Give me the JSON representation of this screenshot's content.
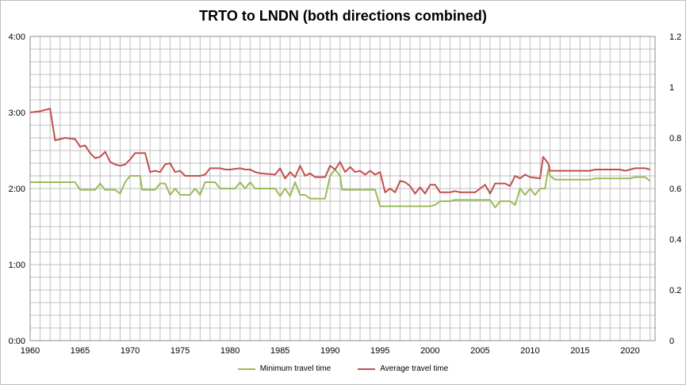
{
  "colors": {
    "min": "#9BBB59",
    "avg": "#C0504D",
    "grid": "#bfbfbf"
  },
  "chart_data": {
    "type": "line",
    "title": "TRTO to LNDN (both directions combined)",
    "xlim": [
      1960,
      2022.5
    ],
    "ylim_left": [
      0,
      240
    ],
    "ylim_right": [
      0,
      1.2
    ],
    "x_ticks": [
      1960,
      1965,
      1970,
      1975,
      1980,
      1985,
      1990,
      1995,
      2000,
      2005,
      2010,
      2015,
      2020
    ],
    "y_left_ticks": [
      {
        "v": 0,
        "label": "0:00"
      },
      {
        "v": 60,
        "label": "1:00"
      },
      {
        "v": 120,
        "label": "2:00"
      },
      {
        "v": 180,
        "label": "3:00"
      },
      {
        "v": 240,
        "label": "4:00"
      }
    ],
    "y_right_ticks": [
      {
        "v": 0,
        "label": "0"
      },
      {
        "v": 0.2,
        "label": "0.2"
      },
      {
        "v": 0.4,
        "label": "0.4"
      },
      {
        "v": 0.6,
        "label": "0.6"
      },
      {
        "v": 0.8,
        "label": "0.8"
      },
      {
        "v": 1.0,
        "label": "1"
      },
      {
        "v": 1.2,
        "label": "1.2"
      }
    ],
    "grid": true,
    "legend_position": "bottom",
    "series": [
      {
        "name": "Minimum travel time",
        "color": "#9BBB59",
        "points": [
          [
            1960,
            125
          ],
          [
            1964.5,
            125
          ],
          [
            1965,
            119
          ],
          [
            1966.5,
            119
          ],
          [
            1967,
            124
          ],
          [
            1967.5,
            119
          ],
          [
            1968.5,
            119
          ],
          [
            1969,
            116
          ],
          [
            1969.5,
            125
          ],
          [
            1970,
            130
          ],
          [
            1971,
            130
          ],
          [
            1971.2,
            119
          ],
          [
            1972.5,
            119
          ],
          [
            1973,
            124
          ],
          [
            1973.5,
            124
          ],
          [
            1974,
            115
          ],
          [
            1974.5,
            120
          ],
          [
            1975,
            115
          ],
          [
            1976,
            115
          ],
          [
            1976.5,
            120
          ],
          [
            1977,
            115
          ],
          [
            1977.5,
            125
          ],
          [
            1978.5,
            125
          ],
          [
            1979,
            120
          ],
          [
            1980,
            120
          ],
          [
            1980.5,
            120
          ],
          [
            1981,
            125
          ],
          [
            1981.5,
            120
          ],
          [
            1982,
            125
          ],
          [
            1982.5,
            120
          ],
          [
            1984.5,
            120
          ],
          [
            1985,
            114
          ],
          [
            1985.5,
            120
          ],
          [
            1986,
            114
          ],
          [
            1986.5,
            125
          ],
          [
            1987,
            115
          ],
          [
            1987.5,
            115
          ],
          [
            1988,
            112
          ],
          [
            1989.5,
            112
          ],
          [
            1990,
            130
          ],
          [
            1990.5,
            135
          ],
          [
            1991,
            130
          ],
          [
            1991.2,
            119
          ],
          [
            1994.5,
            119
          ],
          [
            1995,
            106
          ],
          [
            2000,
            106
          ],
          [
            2000.5,
            107
          ],
          [
            2001,
            110
          ],
          [
            2002,
            110
          ],
          [
            2002.5,
            111
          ],
          [
            2006,
            111
          ],
          [
            2006.5,
            105
          ],
          [
            2007,
            110
          ],
          [
            2008,
            110
          ],
          [
            2008.5,
            107
          ],
          [
            2009,
            120
          ],
          [
            2009.5,
            115
          ],
          [
            2010,
            120
          ],
          [
            2010.5,
            115
          ],
          [
            2011,
            120
          ],
          [
            2011.5,
            120
          ],
          [
            2011.8,
            135
          ],
          [
            2012,
            130
          ],
          [
            2012.5,
            127
          ],
          [
            2016,
            127
          ],
          [
            2016.5,
            128
          ],
          [
            2020,
            128
          ],
          [
            2020.5,
            129
          ],
          [
            2021.5,
            129
          ],
          [
            2022,
            126
          ]
        ]
      },
      {
        "name": "Average travel time",
        "color": "#C0504D",
        "points": [
          [
            1960,
            180
          ],
          [
            1961,
            181
          ],
          [
            1962,
            183
          ],
          [
            1962.5,
            158
          ],
          [
            1963,
            159
          ],
          [
            1963.5,
            160
          ],
          [
            1964.5,
            159
          ],
          [
            1965,
            153
          ],
          [
            1965.5,
            154
          ],
          [
            1966,
            148
          ],
          [
            1966.5,
            144
          ],
          [
            1967,
            145
          ],
          [
            1967.5,
            149
          ],
          [
            1968,
            141
          ],
          [
            1968.5,
            139
          ],
          [
            1969,
            138
          ],
          [
            1969.5,
            139
          ],
          [
            1970,
            143
          ],
          [
            1970.5,
            148
          ],
          [
            1971.5,
            148
          ],
          [
            1972,
            133
          ],
          [
            1972.5,
            134
          ],
          [
            1973,
            133
          ],
          [
            1973.5,
            139
          ],
          [
            1974,
            140
          ],
          [
            1974.5,
            133
          ],
          [
            1975,
            134
          ],
          [
            1975.5,
            130
          ],
          [
            1976,
            130
          ],
          [
            1977,
            130
          ],
          [
            1977.5,
            131
          ],
          [
            1978,
            136
          ],
          [
            1979,
            136
          ],
          [
            1979.5,
            135
          ],
          [
            1980,
            135
          ],
          [
            1981,
            136
          ],
          [
            1981.5,
            135
          ],
          [
            1982,
            135
          ],
          [
            1982.5,
            133
          ],
          [
            1983,
            132
          ],
          [
            1984.5,
            131
          ],
          [
            1985,
            136
          ],
          [
            1985.5,
            128
          ],
          [
            1986,
            133
          ],
          [
            1986.5,
            129
          ],
          [
            1987,
            138
          ],
          [
            1987.5,
            130
          ],
          [
            1988,
            132
          ],
          [
            1988.5,
            129
          ],
          [
            1989.5,
            129
          ],
          [
            1990,
            138
          ],
          [
            1990.5,
            135
          ],
          [
            1991,
            141
          ],
          [
            1991.5,
            133
          ],
          [
            1992,
            137
          ],
          [
            1992.5,
            133
          ],
          [
            1993,
            134
          ],
          [
            1993.5,
            131
          ],
          [
            1994,
            134
          ],
          [
            1994.5,
            131
          ],
          [
            1995,
            133
          ],
          [
            1995.5,
            117
          ],
          [
            1996,
            120
          ],
          [
            1996.5,
            117
          ],
          [
            1997,
            126
          ],
          [
            1997.5,
            125
          ],
          [
            1998,
            122
          ],
          [
            1998.5,
            116
          ],
          [
            1999,
            121
          ],
          [
            1999.5,
            116
          ],
          [
            2000,
            123
          ],
          [
            2000.5,
            123
          ],
          [
            2001,
            117
          ],
          [
            2002,
            117
          ],
          [
            2002.5,
            118
          ],
          [
            2003,
            117
          ],
          [
            2004.5,
            117
          ],
          [
            2005,
            120
          ],
          [
            2005.5,
            123
          ],
          [
            2006,
            116
          ],
          [
            2006.5,
            124
          ],
          [
            2007.5,
            124
          ],
          [
            2008,
            122
          ],
          [
            2008.5,
            130
          ],
          [
            2009,
            128
          ],
          [
            2009.5,
            131
          ],
          [
            2010,
            129
          ],
          [
            2011,
            128
          ],
          [
            2011.3,
            145
          ],
          [
            2011.8,
            140
          ],
          [
            2012,
            134
          ],
          [
            2016,
            134
          ],
          [
            2016.5,
            135
          ],
          [
            2019,
            135
          ],
          [
            2019.5,
            134
          ],
          [
            2020,
            135
          ],
          [
            2020.5,
            136
          ],
          [
            2021.5,
            136
          ],
          [
            2022,
            135
          ]
        ]
      }
    ]
  }
}
